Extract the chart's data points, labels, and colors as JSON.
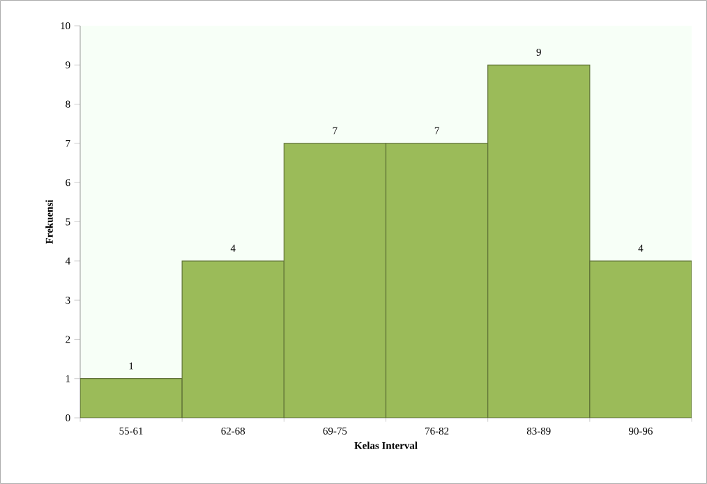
{
  "chart_data": {
    "type": "bar",
    "categories": [
      "55-61",
      "62-68",
      "69-75",
      "76-82",
      "83-89",
      "90-96"
    ],
    "values": [
      1,
      4,
      7,
      7,
      9,
      4
    ],
    "color": "#9bbb59",
    "xlabel": "Kelas Interval",
    "ylabel": "Frekuensi",
    "ylim": [
      0,
      10
    ],
    "yticks": [
      0,
      1,
      2,
      3,
      4,
      5,
      6,
      7,
      8,
      9,
      10
    ],
    "data_labels": true,
    "grid": false
  }
}
